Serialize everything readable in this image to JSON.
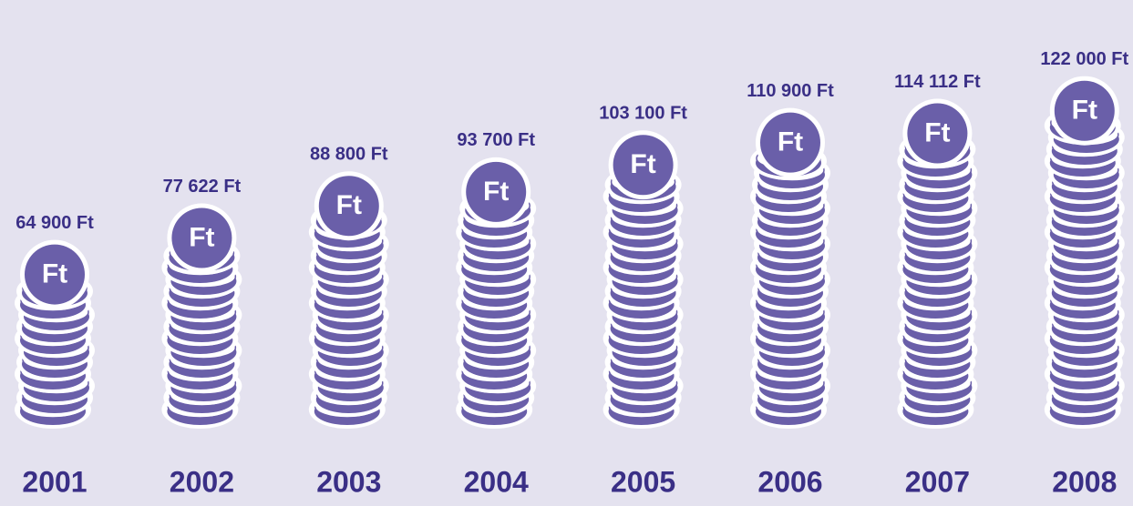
{
  "chart_data": {
    "type": "bar",
    "categories": [
      "2001",
      "2002",
      "2003",
      "2004",
      "2005",
      "2006",
      "2007",
      "2008"
    ],
    "values": [
      64900,
      77622,
      88800,
      93700,
      103100,
      110900,
      114112,
      122000
    ],
    "value_labels": [
      "64 900 Ft",
      "77 622 Ft",
      "88 800 Ft",
      "93 700 Ft",
      "103 100 Ft",
      "110 900 Ft",
      "114 112 Ft",
      "122 000 Ft"
    ],
    "coin_symbol": "Ft",
    "color": "#6a5fa9"
  }
}
